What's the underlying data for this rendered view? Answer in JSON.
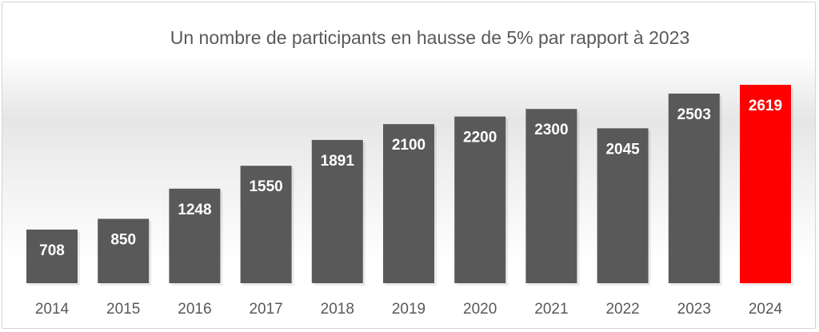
{
  "chart_data": {
    "type": "bar",
    "title": "Un nombre de participants en hausse de 5% par rapport à 2023",
    "xlabel": "",
    "ylabel": "",
    "categories": [
      "2014",
      "2015",
      "2016",
      "2017",
      "2018",
      "2019",
      "2020",
      "2021",
      "2022",
      "2023",
      "2024"
    ],
    "values": [
      708,
      850,
      1248,
      1550,
      1891,
      2100,
      2200,
      2300,
      2045,
      2503,
      2619
    ],
    "data_labels": [
      "708",
      "850",
      "1248",
      "1550",
      "1891",
      "2100",
      "2200",
      "2300",
      "2045",
      "2503",
      "2619"
    ],
    "ylim": [
      0,
      2619
    ],
    "grid": false,
    "legend": "none",
    "colors": {
      "default": "#595959",
      "highlight": "#ff0000"
    },
    "highlight_category": "2024"
  }
}
